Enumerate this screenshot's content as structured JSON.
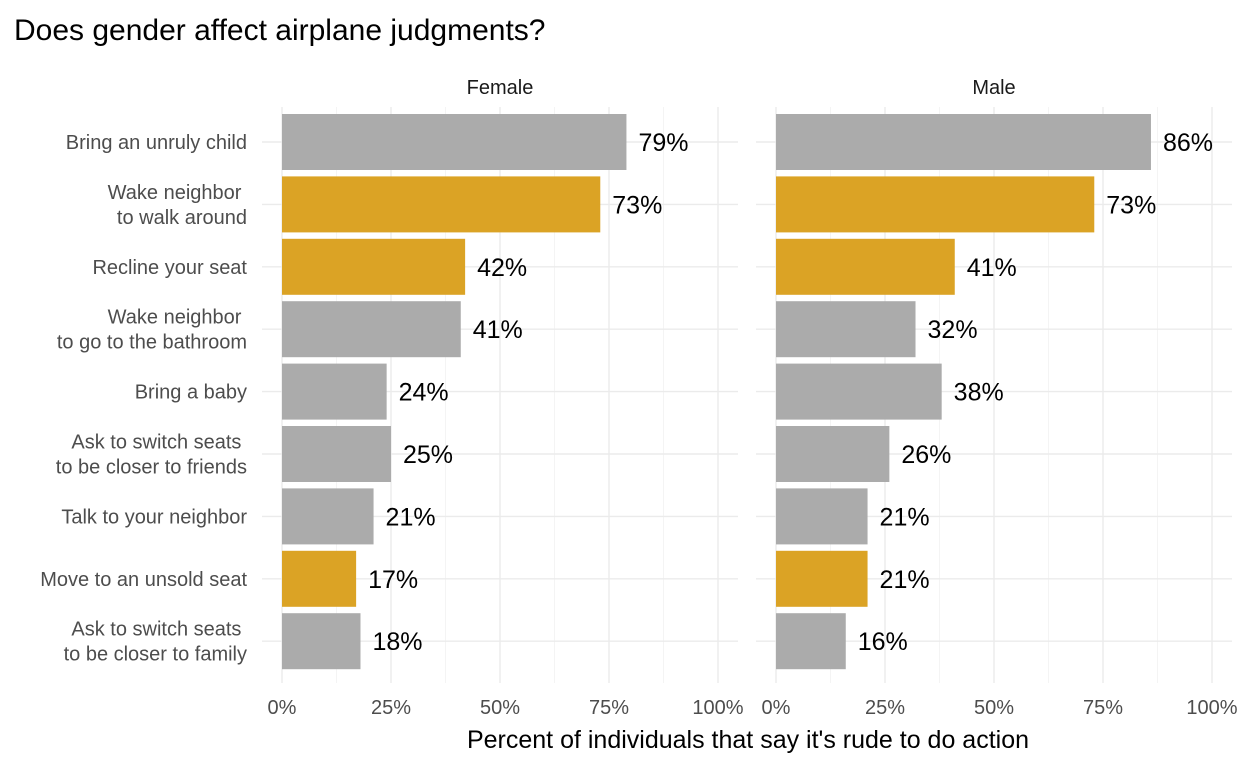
{
  "chart_data": {
    "type": "bar",
    "orientation": "horizontal",
    "title": "Does gender affect airplane judgments?",
    "xlabel": "Percent of individuals that say it's rude to do action",
    "ylabel": "",
    "xlim": [
      0,
      100
    ],
    "x_ticks": [
      "0%",
      "25%",
      "50%",
      "75%",
      "100%"
    ],
    "grid": true,
    "legend": "none",
    "colors": {
      "default": "#ababab",
      "highlight": "#dba325"
    },
    "categories": [
      "Bring an unruly child",
      "Wake neighbor \nto walk around",
      "Recline your seat",
      "Wake neighbor \nto go to the bathroom",
      "Bring a baby",
      "Ask to switch seats \nto be closer to friends",
      "Talk to your neighbor",
      "Move to an unsold seat",
      "Ask to switch seats \nto be closer to family"
    ],
    "highlighted": [
      false,
      true,
      true,
      false,
      false,
      false,
      false,
      true,
      false
    ],
    "facets": [
      {
        "name": "Female",
        "values": [
          79,
          73,
          42,
          41,
          24,
          25,
          21,
          17,
          18
        ],
        "labels": [
          "79%",
          "73%",
          "42%",
          "41%",
          "24%",
          "25%",
          "21%",
          "17%",
          "18%"
        ]
      },
      {
        "name": "Male",
        "values": [
          86,
          73,
          41,
          32,
          38,
          26,
          21,
          21,
          16
        ],
        "labels": [
          "86%",
          "73%",
          "41%",
          "32%",
          "38%",
          "26%",
          "21%",
          "21%",
          "16%"
        ]
      }
    ]
  }
}
